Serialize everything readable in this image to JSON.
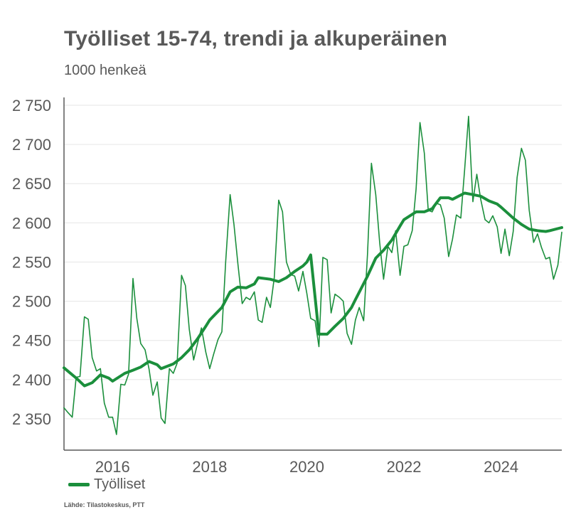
{
  "title": "Työlliset 15-74, trendi ja alkuperäinen",
  "subtitle": "1000 henkeä",
  "source": "Lähde: Tilastokeskus, PTT",
  "colors": {
    "series": "#1b8f3c",
    "text": "#595959",
    "grid": "#e6e6e6",
    "axis": "#595959"
  },
  "chart_data": {
    "type": "line",
    "title": "Työlliset 15-74, trendi ja alkuperäinen",
    "subtitle": "1000 henkeä",
    "xlabel": "",
    "ylabel": "",
    "xlim": [
      2015.0,
      2025.25
    ],
    "ylim": [
      2310,
      2760
    ],
    "yticks": [
      2350,
      2400,
      2450,
      2500,
      2550,
      2600,
      2650,
      2700,
      2750
    ],
    "ytick_labels": [
      "2 350",
      "2 400",
      "2 450",
      "2 500",
      "2 550",
      "2 600",
      "2 650",
      "2 700",
      "2 750"
    ],
    "xticks": [
      2016,
      2018,
      2020,
      2022,
      2024
    ],
    "xtick_labels": [
      "2016",
      "2018",
      "2020",
      "2022",
      "2024"
    ],
    "grid": "horizontal",
    "legend": "bottom-left",
    "legend_entries": [
      "Työlliset"
    ],
    "series": [
      {
        "name": "Työlliset",
        "role": "trend",
        "x": [
          2015.0,
          2015.25,
          2015.42,
          2015.58,
          2015.75,
          2015.92,
          2016.0,
          2016.25,
          2016.42,
          2016.58,
          2016.75,
          2016.92,
          2017.0,
          2017.25,
          2017.42,
          2017.58,
          2017.75,
          2017.92,
          2018.0,
          2018.25,
          2018.42,
          2018.58,
          2018.75,
          2018.92,
          2019.0,
          2019.25,
          2019.42,
          2019.58,
          2019.75,
          2019.92,
          2020.0,
          2020.08,
          2020.25,
          2020.42,
          2020.58,
          2020.75,
          2020.92,
          2021.0,
          2021.25,
          2021.42,
          2021.58,
          2021.75,
          2021.92,
          2022.0,
          2022.25,
          2022.42,
          2022.58,
          2022.75,
          2022.92,
          2023.0,
          2023.25,
          2023.42,
          2023.58,
          2023.75,
          2023.92,
          2024.0,
          2024.25,
          2024.42,
          2024.58,
          2024.75,
          2024.92,
          2025.0,
          2025.25
        ],
        "values": [
          2415,
          2402,
          2392,
          2396,
          2406,
          2402,
          2398,
          2408,
          2412,
          2416,
          2423,
          2419,
          2414,
          2420,
          2428,
          2438,
          2452,
          2468,
          2476,
          2492,
          2512,
          2518,
          2517,
          2522,
          2530,
          2528,
          2525,
          2530,
          2538,
          2545,
          2550,
          2559,
          2458,
          2458,
          2468,
          2478,
          2492,
          2502,
          2532,
          2555,
          2565,
          2578,
          2596,
          2604,
          2614,
          2614,
          2618,
          2632,
          2632,
          2630,
          2638,
          2636,
          2634,
          2628,
          2624,
          2620,
          2606,
          2598,
          2592,
          2590,
          2589,
          2590,
          2594
        ]
      },
      {
        "name": "",
        "role": "original",
        "x": [
          2015.0,
          2015.08,
          2015.17,
          2015.25,
          2015.33,
          2015.42,
          2015.5,
          2015.58,
          2015.67,
          2015.75,
          2015.83,
          2015.92,
          2016.0,
          2016.08,
          2016.17,
          2016.25,
          2016.33,
          2016.42,
          2016.5,
          2016.58,
          2016.67,
          2016.75,
          2016.83,
          2016.92,
          2017.0,
          2017.08,
          2017.17,
          2017.25,
          2017.33,
          2017.42,
          2017.5,
          2017.58,
          2017.67,
          2017.75,
          2017.83,
          2017.92,
          2018.0,
          2018.08,
          2018.17,
          2018.25,
          2018.33,
          2018.42,
          2018.5,
          2018.58,
          2018.67,
          2018.75,
          2018.83,
          2018.92,
          2019.0,
          2019.08,
          2019.17,
          2019.25,
          2019.33,
          2019.42,
          2019.5,
          2019.58,
          2019.67,
          2019.75,
          2019.83,
          2019.92,
          2020.0,
          2020.08,
          2020.17,
          2020.25,
          2020.33,
          2020.42,
          2020.5,
          2020.58,
          2020.67,
          2020.75,
          2020.83,
          2020.92,
          2021.0,
          2021.08,
          2021.17,
          2021.25,
          2021.33,
          2021.42,
          2021.5,
          2021.58,
          2021.67,
          2021.75,
          2021.83,
          2021.92,
          2022.0,
          2022.08,
          2022.17,
          2022.25,
          2022.33,
          2022.42,
          2022.5,
          2022.58,
          2022.67,
          2022.75,
          2022.83,
          2022.92,
          2023.0,
          2023.08,
          2023.17,
          2023.25,
          2023.33,
          2023.42,
          2023.5,
          2023.58,
          2023.67,
          2023.75,
          2023.83,
          2023.92,
          2024.0,
          2024.08,
          2024.17,
          2024.25,
          2024.33,
          2024.42,
          2024.5,
          2024.58,
          2024.67,
          2024.75,
          2024.83,
          2024.92,
          2025.0,
          2025.08,
          2025.17,
          2025.25
        ],
        "values": [
          2364,
          2358,
          2352,
          2403,
          2404,
          2480,
          2477,
          2428,
          2411,
          2414,
          2370,
          2352,
          2352,
          2330,
          2394,
          2393,
          2407,
          2529,
          2478,
          2446,
          2438,
          2414,
          2380,
          2397,
          2351,
          2344,
          2414,
          2408,
          2421,
          2533,
          2520,
          2464,
          2425,
          2446,
          2466,
          2435,
          2414,
          2432,
          2451,
          2461,
          2551,
          2636,
          2598,
          2548,
          2497,
          2505,
          2502,
          2512,
          2476,
          2473,
          2505,
          2492,
          2530,
          2629,
          2614,
          2550,
          2534,
          2532,
          2513,
          2538,
          2510,
          2478,
          2475,
          2442,
          2556,
          2553,
          2485,
          2509,
          2505,
          2500,
          2459,
          2445,
          2476,
          2492,
          2475,
          2560,
          2676,
          2636,
          2575,
          2528,
          2570,
          2562,
          2590,
          2533,
          2570,
          2572,
          2590,
          2643,
          2728,
          2689,
          2616,
          2614,
          2625,
          2623,
          2606,
          2557,
          2579,
          2610,
          2606,
          2668,
          2736,
          2627,
          2662,
          2630,
          2604,
          2600,
          2609,
          2595,
          2561,
          2592,
          2558,
          2589,
          2658,
          2695,
          2680,
          2616,
          2575,
          2586,
          2569,
          2554,
          2556,
          2528,
          2546,
          2588
        ]
      }
    ]
  }
}
